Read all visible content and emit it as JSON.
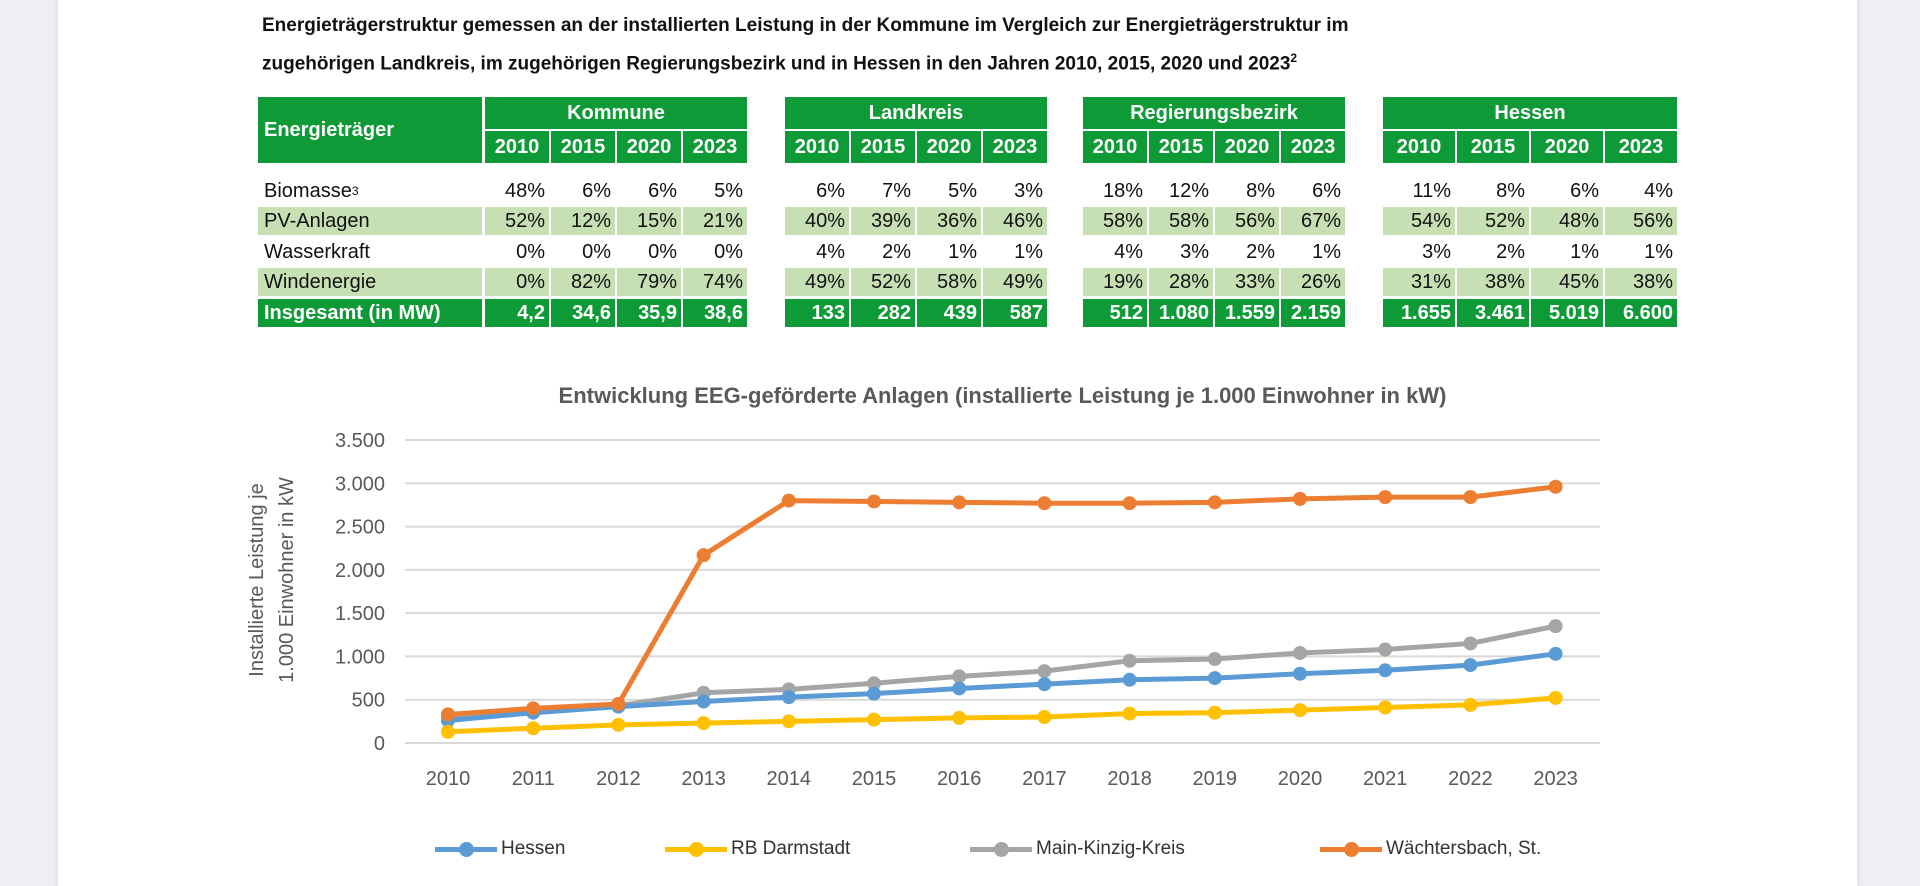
{
  "title": {
    "line1": "Energieträgerstruktur gemessen an der installierten Leistung in der Kommune im Vergleich zur Energieträgerstruktur im",
    "line2": "zugehörigen Landkreis, im zugehörigen Regierungsbezirk und in Hessen in den Jahren 2010, 2015, 2020 und 2023",
    "footnote": "2"
  },
  "table": {
    "label_header": "Energieträger",
    "groups": [
      "Kommune",
      "Landkreis",
      "Regierungsbezirk",
      "Hessen"
    ],
    "years": [
      "2010",
      "2015",
      "2020",
      "2023"
    ],
    "rows": [
      {
        "label": "Biomasse",
        "footnote": "3",
        "values": [
          [
            "48%",
            "6%",
            "6%",
            "5%"
          ],
          [
            "6%",
            "7%",
            "5%",
            "3%"
          ],
          [
            "18%",
            "12%",
            "8%",
            "6%"
          ],
          [
            "11%",
            "8%",
            "6%",
            "4%"
          ]
        ]
      },
      {
        "label": "PV-Anlagen",
        "values": [
          [
            "52%",
            "12%",
            "15%",
            "21%"
          ],
          [
            "40%",
            "39%",
            "36%",
            "46%"
          ],
          [
            "58%",
            "58%",
            "56%",
            "67%"
          ],
          [
            "54%",
            "52%",
            "48%",
            "56%"
          ]
        ]
      },
      {
        "label": "Wasserkraft",
        "values": [
          [
            "0%",
            "0%",
            "0%",
            "0%"
          ],
          [
            "4%",
            "2%",
            "1%",
            "1%"
          ],
          [
            "4%",
            "3%",
            "2%",
            "1%"
          ],
          [
            "3%",
            "2%",
            "1%",
            "1%"
          ]
        ]
      },
      {
        "label": "Windenergie",
        "values": [
          [
            "0%",
            "82%",
            "79%",
            "74%"
          ],
          [
            "49%",
            "52%",
            "58%",
            "49%"
          ],
          [
            "19%",
            "28%",
            "33%",
            "26%"
          ],
          [
            "31%",
            "38%",
            "45%",
            "38%"
          ]
        ]
      },
      {
        "label": "Insgesamt (in MW)",
        "values": [
          [
            "4,2",
            "34,6",
            "35,9",
            "38,6"
          ],
          [
            "133",
            "282",
            "439",
            "587"
          ],
          [
            "512",
            "1.080",
            "1.559",
            "2.159"
          ],
          [
            "1.655",
            "3.461",
            "5.019",
            "6.600"
          ]
        ]
      }
    ],
    "colors": {
      "header": "#0e9a36",
      "alt_row": "#c6e0b4"
    }
  },
  "chart_data": {
    "type": "line",
    "title": "Entwicklung EEG-geförderte Anlagen (installierte Leistung je 1.000 Einwohner in kW)",
    "ylabel_line1": "Installierte Leistung je",
    "ylabel_line2": "1.000 Einwohner in kW",
    "xlabel": "",
    "categories": [
      "2010",
      "2011",
      "2012",
      "2013",
      "2014",
      "2015",
      "2016",
      "2017",
      "2018",
      "2019",
      "2020",
      "2021",
      "2022",
      "2023"
    ],
    "ylim": [
      0,
      3500
    ],
    "yticks": [
      0,
      500,
      1000,
      1500,
      2000,
      2500,
      3000,
      3500
    ],
    "ytick_labels": [
      "0",
      "500",
      "1.000",
      "1.500",
      "2.000",
      "2.500",
      "3.000",
      "3.500"
    ],
    "grid": true,
    "legend": "bottom",
    "series": [
      {
        "name": "Hessen",
        "color": "#5b9bd5",
        "values": [
          260,
          350,
          420,
          480,
          530,
          570,
          630,
          680,
          730,
          750,
          800,
          840,
          900,
          1030
        ]
      },
      {
        "name": "RB Darmstadt",
        "color": "#ffc000",
        "values": [
          130,
          170,
          210,
          230,
          250,
          270,
          290,
          300,
          340,
          350,
          380,
          410,
          440,
          520
        ]
      },
      {
        "name": "Main-Kinzig-Kreis",
        "color": "#a5a5a5",
        "values": [
          300,
          370,
          430,
          580,
          620,
          690,
          770,
          830,
          950,
          970,
          1040,
          1080,
          1150,
          1350
        ]
      },
      {
        "name": "Wächtersbach, St.",
        "color": "#ed7d31",
        "values": [
          330,
          400,
          450,
          2170,
          2800,
          2790,
          2780,
          2770,
          2770,
          2780,
          2820,
          2840,
          2840,
          2960
        ]
      }
    ]
  }
}
